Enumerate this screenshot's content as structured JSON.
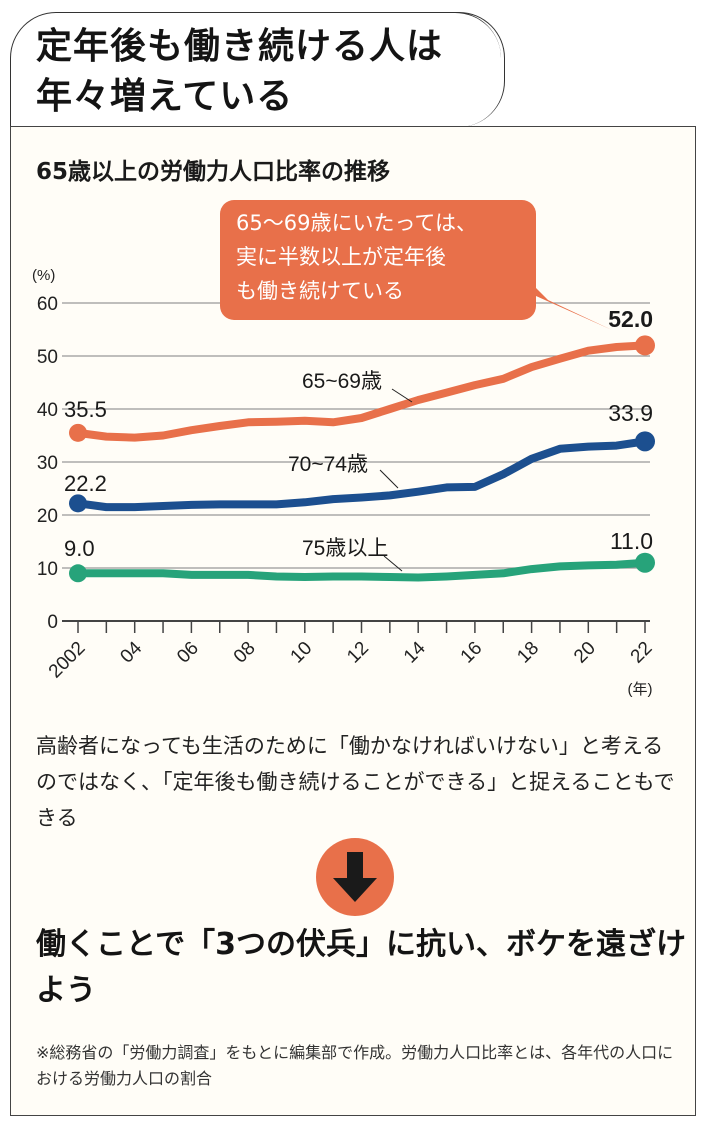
{
  "header": {
    "title_line1": "定年後も働き続ける人は",
    "title_line2": "年々増えている"
  },
  "chart_data": {
    "type": "line",
    "title": "65歳以上の労働力人口比率の推移",
    "ylabel": "(%)",
    "xlabel": "(年)",
    "ylim": [
      0,
      60
    ],
    "yticks": [
      0,
      10,
      20,
      30,
      40,
      50,
      60
    ],
    "grid": true,
    "x": [
      2002,
      2003,
      2004,
      2005,
      2006,
      2007,
      2008,
      2009,
      2010,
      2011,
      2012,
      2013,
      2014,
      2015,
      2016,
      2017,
      2018,
      2019,
      2020,
      2021,
      2022
    ],
    "xtick_labels": [
      "2002",
      "04",
      "06",
      "08",
      "10",
      "12",
      "14",
      "16",
      "18",
      "20",
      "22"
    ],
    "series": [
      {
        "name": "65~69歳",
        "color": "#e8704a",
        "start_label": "35.5",
        "end_label": "52.0",
        "values": [
          35.5,
          34.8,
          34.6,
          35.0,
          36.0,
          36.8,
          37.5,
          37.6,
          37.8,
          37.5,
          38.3,
          40.0,
          41.7,
          43.1,
          44.5,
          45.7,
          47.9,
          49.5,
          51.0,
          51.7,
          52.0
        ]
      },
      {
        "name": "70~74歳",
        "color": "#1c4f8f",
        "start_label": "22.2",
        "end_label": "33.9",
        "values": [
          22.2,
          21.5,
          21.5,
          21.7,
          21.9,
          22.0,
          22.0,
          22.0,
          22.4,
          23.0,
          23.3,
          23.7,
          24.4,
          25.2,
          25.3,
          27.7,
          30.6,
          32.5,
          32.9,
          33.1,
          33.9
        ]
      },
      {
        "name": "75歳以上",
        "color": "#27a37a",
        "start_label": "9.0",
        "end_label": "11.0",
        "values": [
          9.0,
          9.0,
          9.0,
          9.0,
          8.7,
          8.7,
          8.7,
          8.4,
          8.3,
          8.4,
          8.4,
          8.3,
          8.2,
          8.4,
          8.7,
          9.0,
          9.8,
          10.3,
          10.5,
          10.6,
          11.0
        ]
      }
    ],
    "annotation": {
      "lines": [
        "65～69歳にいたっては、",
        "実に半数以上が定年後",
        "も働き続けている"
      ],
      "color": "#e8704a"
    }
  },
  "body": {
    "paragraph": "高齢者になっても生活のために「働かなければいけない」と考えるのではなく、「定年後も働き続けることができる」と捉えることもできる",
    "arrow_icon": "down-arrow-icon",
    "headline": "働くことで「3つの伏兵」に抗い、ボケを遠ざけよう",
    "note": "※総務省の「労働力調査」をもとに編集部で作成。労働力人口比率とは、各年代の人口における労働力人口の割合"
  }
}
